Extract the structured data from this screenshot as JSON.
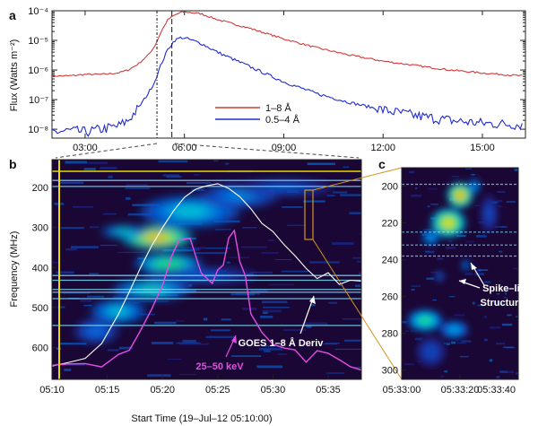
{
  "colors": {
    "red": "#d03a3a",
    "blue": "#1f2bd6",
    "yellow": "#e8d800",
    "orange": "#d4951f",
    "magenta": "#e64ce6",
    "white": "#ffffff",
    "cyan": "#7ee7ff"
  },
  "chart_data": [
    {
      "panel": "a",
      "type": "line",
      "ylabel": "Flux (Watts m⁻²)",
      "yscale": "log",
      "ylim_exp": [
        -8.3,
        -4
      ],
      "xlim_hours": [
        2.0,
        16.3
      ],
      "x_ticks": [
        3,
        6,
        9,
        12,
        15
      ],
      "x_tick_labels": [
        "03:00",
        "06:00",
        "09:00",
        "12:00",
        "15:00"
      ],
      "y_ticks_exp": [
        -8,
        -7,
        -6,
        -5,
        -4
      ],
      "y_tick_labels": [
        "10⁻⁸",
        "10⁻⁷",
        "10⁻⁶",
        "10⁻⁵",
        "10⁻⁴"
      ],
      "vlines_hours": [
        5.17,
        5.62
      ],
      "legend": [
        "1–8 Å",
        "0.5–4 Å"
      ],
      "series": [
        {
          "name": "1–8 Å",
          "color": "#d03a3a",
          "x": [
            2.0,
            2.5,
            3.0,
            3.5,
            4.0,
            4.3,
            4.6,
            4.9,
            5.1,
            5.3,
            5.5,
            5.7,
            5.9,
            6.1,
            6.5,
            7.0,
            8.0,
            9.0,
            10.0,
            11.0,
            12.0,
            13.0,
            14.0,
            15.0,
            16.2
          ],
          "y": [
            -6.2,
            -6.2,
            -6.15,
            -6.15,
            -6.1,
            -6.0,
            -5.8,
            -5.5,
            -5.2,
            -4.7,
            -4.3,
            -4.15,
            -4.05,
            -4.05,
            -4.1,
            -4.3,
            -4.6,
            -4.95,
            -5.25,
            -5.5,
            -5.7,
            -5.85,
            -6.0,
            -6.1,
            -6.2
          ]
        },
        {
          "name": "0.5–4 Å",
          "color": "#1f2bd6",
          "x": [
            2.0,
            2.5,
            3.0,
            3.5,
            4.0,
            4.3,
            4.6,
            4.9,
            5.1,
            5.3,
            5.5,
            5.7,
            5.9,
            6.1,
            6.5,
            7.0,
            8.0,
            9.0,
            10.0,
            11.0,
            12.0,
            13.0,
            14.0,
            15.0,
            16.2
          ],
          "y": [
            -8.1,
            -8.05,
            -8.1,
            -8.0,
            -7.9,
            -7.7,
            -7.3,
            -6.8,
            -6.4,
            -5.8,
            -5.3,
            -5.0,
            -4.9,
            -4.95,
            -5.1,
            -5.4,
            -5.9,
            -6.4,
            -6.8,
            -7.1,
            -7.35,
            -7.55,
            -7.7,
            -7.8,
            -7.85
          ]
        }
      ]
    },
    {
      "panel": "b",
      "type": "heatmap",
      "ylabel": "Frequency (MHz)",
      "xlabel": "Start Time (19–Jul–12 05:10:00)",
      "xlim_min": [
        0,
        28
      ],
      "ylim_mhz": [
        130,
        680
      ],
      "x_ticks": [
        0,
        5,
        10,
        15,
        20,
        25
      ],
      "x_tick_labels": [
        "05:10",
        "05:15",
        "05:20",
        "05:25",
        "05:30",
        "05:35"
      ],
      "y_ticks": [
        200,
        300,
        400,
        500,
        600
      ],
      "y_tick_labels": [
        "200",
        "300",
        "400",
        "500",
        "600"
      ],
      "annotations": [
        "GOES 1–8 Å Deriv",
        "25–50 keV"
      ],
      "blobs": [
        {
          "t": 12.5,
          "f": 260,
          "rt": 4.5,
          "rf": 40,
          "level": 0.55
        },
        {
          "t": 9.5,
          "f": 325,
          "rt": 3.2,
          "rf": 30,
          "level": 0.9
        },
        {
          "t": 6.5,
          "f": 310,
          "rt": 2.0,
          "rf": 15,
          "level": 0.6
        },
        {
          "t": 10.5,
          "f": 390,
          "rt": 3.0,
          "rf": 25,
          "level": 0.7
        },
        {
          "t": 9.0,
          "f": 455,
          "rt": 3.5,
          "rf": 25,
          "level": 0.6
        },
        {
          "t": 6.0,
          "f": 510,
          "rt": 2.5,
          "rf": 30,
          "level": 0.55
        },
        {
          "t": 17.0,
          "f": 220,
          "rt": 3.5,
          "rf": 30,
          "level": 0.45
        },
        {
          "t": 21.0,
          "f": 200,
          "rt": 4.5,
          "rf": 20,
          "level": 0.35
        },
        {
          "t": 4.0,
          "f": 560,
          "rt": 2.0,
          "rf": 30,
          "level": 0.4
        },
        {
          "t": 13.5,
          "f": 420,
          "rt": 5.0,
          "rf": 20,
          "level": 0.35
        }
      ],
      "goes_deriv": {
        "color": "#ffffff",
        "t": [
          0.0,
          1.5,
          3.0,
          4.5,
          6.0,
          7.0,
          8.0,
          9.0,
          10.0,
          11.0,
          12.0,
          13.0,
          14.0,
          15.0,
          16.0,
          17.0,
          18.0,
          19.0,
          20.0,
          21.0,
          22.0,
          23.0,
          24.0,
          25.0,
          26.0,
          27.0,
          28.0
        ],
        "f": [
          650,
          640,
          625,
          590,
          520,
          460,
          400,
          350,
          300,
          260,
          225,
          205,
          195,
          190,
          200,
          225,
          250,
          290,
          310,
          340,
          370,
          400,
          430,
          410,
          445,
          430,
          435
        ]
      },
      "hxr": {
        "color": "#e64ce6",
        "t": [
          0.0,
          1.5,
          3.0,
          4.5,
          6.0,
          7.0,
          8.0,
          9.0,
          10.0,
          10.8,
          11.5,
          12.5,
          13.5,
          14.5,
          15.0,
          15.5,
          16.0,
          16.5,
          17.0,
          17.5,
          18.0,
          19.0,
          20.0,
          21.0,
          22.0,
          23.0,
          24.0,
          25.0,
          26.0,
          27.0,
          28.0
        ],
        "f": [
          650,
          640,
          640,
          645,
          625,
          600,
          560,
          500,
          440,
          370,
          330,
          320,
          420,
          440,
          400,
          390,
          330,
          310,
          380,
          420,
          520,
          560,
          590,
          600,
          610,
          630,
          600,
          620,
          625,
          640,
          650
        ]
      },
      "hlines_mhz": [
        182,
        197,
        420,
        432,
        455,
        462,
        478,
        545
      ]
    },
    {
      "panel": "c",
      "type": "heatmap",
      "xlim_s": [
        0,
        40
      ],
      "ylim_mhz": [
        190,
        305
      ],
      "x_ticks": [
        0,
        20,
        40
      ],
      "x_tick_labels": [
        "05:33:00",
        "05:33:20",
        "05:33:40"
      ],
      "y_ticks": [
        200,
        220,
        240,
        260,
        280,
        300
      ],
      "y_tick_labels": [
        "200",
        "220",
        "240",
        "260",
        "280",
        "300"
      ],
      "annotation": "Spike–like Structures",
      "blobs": [
        {
          "t": 20,
          "f": 205,
          "rt": 4.5,
          "rf": 7,
          "level": 0.9
        },
        {
          "t": 16,
          "f": 220,
          "rt": 6,
          "rf": 8,
          "level": 0.85
        },
        {
          "t": 10,
          "f": 228,
          "rt": 3,
          "rf": 4,
          "level": 0.5
        },
        {
          "t": 25,
          "f": 200,
          "rt": 2,
          "rf": 4,
          "level": 0.5
        },
        {
          "t": 8,
          "f": 273,
          "rt": 6,
          "rf": 6,
          "level": 0.65
        },
        {
          "t": 18,
          "f": 278,
          "rt": 5,
          "rf": 5,
          "level": 0.5
        },
        {
          "t": 22,
          "f": 243,
          "rt": 1.5,
          "rf": 3,
          "level": 0.45
        },
        {
          "t": 13,
          "f": 249,
          "rt": 1.5,
          "rf": 3,
          "level": 0.4
        },
        {
          "t": 30,
          "f": 215,
          "rt": 3,
          "rf": 10,
          "level": 0.3
        },
        {
          "t": 10,
          "f": 290,
          "rt": 5,
          "rf": 8,
          "level": 0.3
        }
      ],
      "hlines_mhz": [
        199,
        225,
        232,
        238
      ]
    }
  ]
}
